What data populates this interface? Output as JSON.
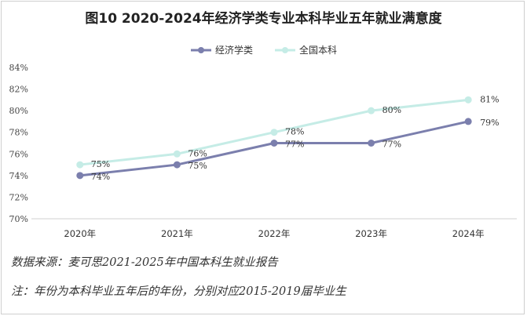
{
  "chart_data": {
    "type": "line",
    "title": "图10 2020-2024年经济学类专业本科毕业五年就业满意度",
    "categories": [
      "2020年",
      "2021年",
      "2022年",
      "2023年",
      "2024年"
    ],
    "ylim": [
      70,
      84
    ],
    "yticks": [
      "70%",
      "72%",
      "74%",
      "76%",
      "78%",
      "80%",
      "82%",
      "84%"
    ],
    "grid": false,
    "legend_position": "top-center",
    "series": [
      {
        "name": "经济学类",
        "color": "#7b7fad",
        "values": [
          74,
          75,
          77,
          77,
          79
        ],
        "labels": [
          "74%",
          "75%",
          "77%",
          "77%",
          "79%"
        ]
      },
      {
        "name": "全国本科",
        "color": "#c5ece6",
        "values": [
          75,
          76,
          78,
          80,
          81
        ],
        "labels": [
          "75%",
          "76%",
          "78%",
          "80%",
          "81%"
        ]
      }
    ]
  },
  "notes": {
    "source": "数据来源：麦可思2021-2025年中国本科生就业报告",
    "footnote": "注：年份为本科毕业五年后的年份，分别对应2015-2019届毕业生"
  }
}
